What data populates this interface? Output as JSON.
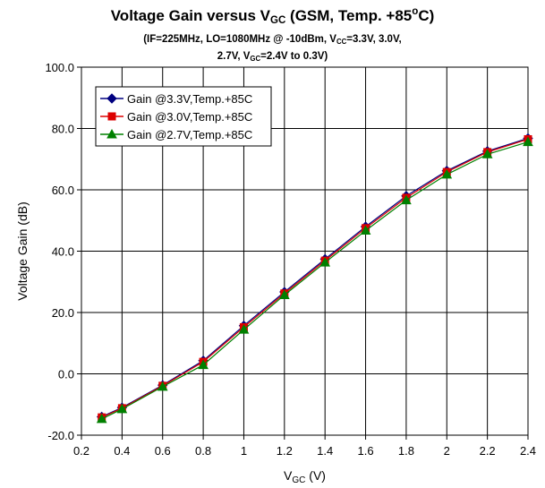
{
  "chart_data": {
    "type": "line",
    "title": {
      "main_prefix": "Voltage Gain versus V",
      "main_sub": "GC",
      "main_mid": " (GSM, Temp. +85",
      "main_sup": "o",
      "main_suffix": "C)"
    },
    "subtitle_line1": {
      "text_a": "(IF=225MHz, LO=1080MHz @ -10dBm, V",
      "sub_a": "CC",
      "text_b": "=3.3V, 3.0V,"
    },
    "subtitle_line2": {
      "text_a": "2.7V, V",
      "sub_a": "GC",
      "text_b": "=2.4V to 0.3V)"
    },
    "xlabel": {
      "main": "V",
      "sub": "GC",
      "suffix": " (V)"
    },
    "ylabel": "Voltage Gain (dB)",
    "xlim": [
      0.2,
      2.4
    ],
    "ylim": [
      -20,
      100
    ],
    "x_ticks": [
      "0.2",
      "0.4",
      "0.6",
      "0.8",
      "1",
      "1.2",
      "1.4",
      "1.6",
      "1.8",
      "2",
      "2.2",
      "2.4"
    ],
    "y_ticks": [
      "-20.0",
      "0.0",
      "20.0",
      "40.0",
      "60.0",
      "80.0",
      "100.0"
    ],
    "grid": true,
    "legend_position": "top-left",
    "x": [
      0.3,
      0.4,
      0.6,
      0.8,
      1.0,
      1.2,
      1.4,
      1.6,
      1.8,
      2.0,
      2.2,
      2.4
    ],
    "series": [
      {
        "name": "Gain @3.3V,Temp.+85C",
        "color": "#000080",
        "marker": "diamond",
        "values": [
          -14.0,
          -11.0,
          -3.7,
          4.3,
          15.7,
          26.7,
          37.4,
          48.0,
          58.0,
          66.2,
          72.6,
          76.8
        ]
      },
      {
        "name": "Gain @3.0V,Temp.+85C",
        "color": "#dd0000",
        "marker": "square",
        "values": [
          -14.2,
          -11.2,
          -3.9,
          3.9,
          15.2,
          26.2,
          36.9,
          47.5,
          57.4,
          65.8,
          72.3,
          76.5
        ]
      },
      {
        "name": "Gain @2.7V,Temp.+85C",
        "color": "#008000",
        "marker": "triangle",
        "values": [
          -14.7,
          -11.5,
          -4.2,
          2.9,
          14.4,
          25.7,
          36.3,
          46.7,
          56.6,
          65.0,
          71.6,
          75.6
        ]
      }
    ]
  }
}
